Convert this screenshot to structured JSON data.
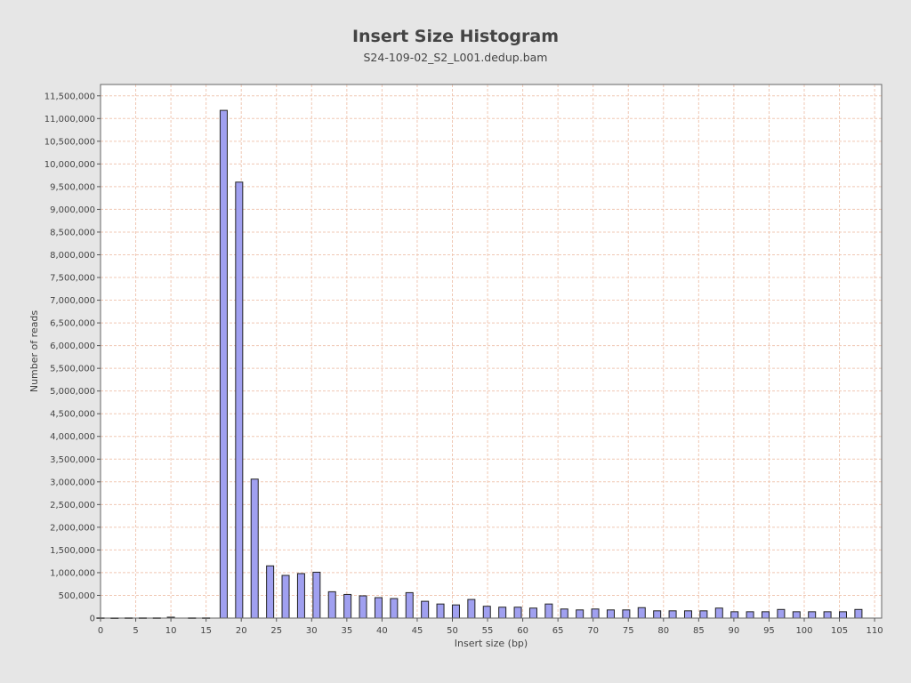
{
  "chart_data": {
    "type": "bar",
    "title": "Insert Size Histogram",
    "subtitle": "S24-109-02_S2_L001.dedup.bam",
    "xlabel": "Insert size (bp)",
    "ylabel": "Number of reads",
    "xlim": [
      0,
      111
    ],
    "ylim": [
      0,
      11750000
    ],
    "grid": true,
    "x_ticks": [
      0,
      5,
      10,
      15,
      20,
      25,
      30,
      35,
      40,
      45,
      50,
      55,
      60,
      65,
      70,
      75,
      80,
      85,
      90,
      95,
      100,
      105,
      110
    ],
    "y_ticks": [
      0,
      500000,
      1000000,
      1500000,
      2000000,
      2500000,
      3000000,
      3500000,
      4000000,
      4500000,
      5000000,
      5500000,
      6000000,
      6500000,
      7000000,
      7500000,
      8000000,
      8500000,
      9000000,
      9500000,
      10000000,
      10500000,
      11000000,
      11500000
    ],
    "series": [
      {
        "x": [
          0,
          2,
          4,
          6,
          8,
          10,
          13,
          15,
          17.5,
          19.7,
          21.9,
          24.1,
          26.3,
          28.5,
          30.7,
          32.9,
          35.1,
          37.3,
          39.5,
          41.7,
          43.9,
          46.1,
          48.3,
          50.5,
          52.7,
          54.9,
          57.1,
          59.3,
          61.5,
          63.7,
          65.9,
          68.1,
          70.3,
          72.5,
          74.7,
          76.9,
          79.1,
          81.3,
          83.5,
          85.7,
          87.9,
          90.1,
          92.3,
          94.5,
          96.7,
          98.9,
          101.1,
          103.3,
          105.5,
          107.7
        ],
        "values": [
          5000,
          3000,
          5000,
          5000,
          5000,
          20000,
          5000,
          5000,
          11180000,
          9600000,
          3060000,
          1150000,
          940000,
          980000,
          1010000,
          580000,
          520000,
          490000,
          450000,
          430000,
          560000,
          370000,
          310000,
          290000,
          410000,
          260000,
          240000,
          240000,
          220000,
          310000,
          200000,
          180000,
          200000,
          180000,
          180000,
          230000,
          160000,
          160000,
          160000,
          160000,
          220000,
          140000,
          140000,
          140000,
          190000,
          140000,
          140000,
          140000,
          140000,
          190000
        ]
      }
    ],
    "colors": {
      "bar_fill": "#a0a0f0",
      "bar_stroke": "#222222",
      "grid": "#f0c8b4",
      "plot_background": "#ffffff",
      "page_background": "#e6e6e6"
    }
  }
}
